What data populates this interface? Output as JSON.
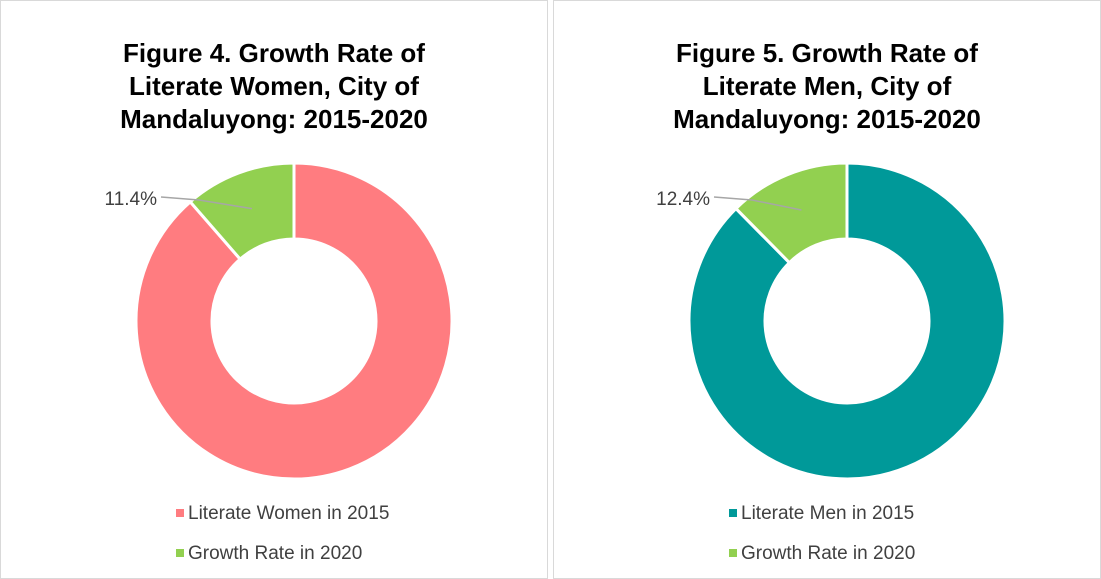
{
  "chart_data": [
    {
      "type": "donut",
      "title": "Figure 4. Growth Rate of Literate Women, City of Mandaluyong: 2015-2020",
      "categories": [
        "Literate Women in 2015",
        "Growth Rate in 2020"
      ],
      "values": [
        88.6,
        11.4
      ],
      "value_labels": [
        null,
        "11.4%"
      ],
      "colors": [
        "#FF7C80",
        "#92D050"
      ]
    },
    {
      "type": "donut",
      "title": "Figure 5. Growth Rate of Literate Men, City of Mandaluyong: 2015-2020",
      "categories": [
        "Literate Men in 2015",
        "Growth Rate in 2020"
      ],
      "values": [
        87.6,
        12.4
      ],
      "value_labels": [
        null,
        "12.4%"
      ],
      "colors": [
        "#009999",
        "#92D050"
      ]
    }
  ]
}
